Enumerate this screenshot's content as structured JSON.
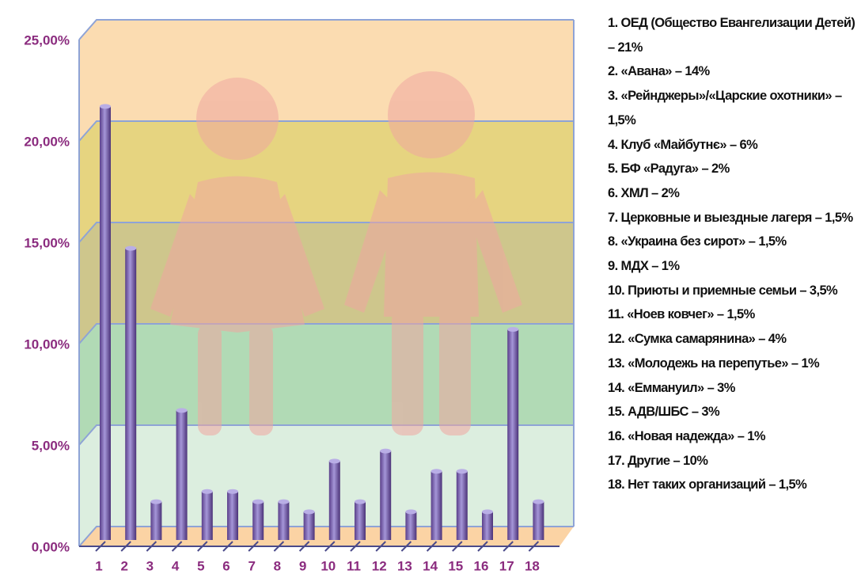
{
  "chart_data": {
    "type": "bar",
    "categories": [
      "1",
      "2",
      "3",
      "4",
      "5",
      "6",
      "7",
      "8",
      "9",
      "10",
      "11",
      "12",
      "13",
      "14",
      "15",
      "16",
      "17",
      "18"
    ],
    "values": [
      21,
      14,
      1.5,
      6,
      2,
      2,
      1.5,
      1.5,
      1,
      3.5,
      1.5,
      4,
      1,
      3,
      3,
      1,
      10,
      1.5
    ],
    "color": "#7b5fa8",
    "ylim": [
      0,
      25
    ],
    "yticks": [
      {
        "value": 0,
        "label": "0,00%"
      },
      {
        "value": 5,
        "label": "5,00%"
      },
      {
        "value": 10,
        "label": "10,00%"
      },
      {
        "value": 15,
        "label": "15,00%"
      },
      {
        "value": 20,
        "label": "20,00%"
      },
      {
        "value": 25,
        "label": "25,00%"
      }
    ],
    "grid": true,
    "band_colors": [
      "#d8ecdc",
      "#a9d6ad",
      "#c9c07f",
      "#e3cf72",
      "#fbd8a9"
    ],
    "legend_items": [
      "1. ОЕД (Общество Евангелизации Детей) – 21%",
      "2. «Авана» – 14%",
      "3. «Рейнджеры»/«Царские охотники» – 1,5%",
      "4. Клуб «Майбутнє» – 6%",
      "5. БФ «Радуга» – 2%",
      "6. ХМЛ – 2%",
      "7. Церковные и выездные лагеря – 1,5%",
      "8. «Украина без сирот» – 1,5%",
      "9. МДХ – 1%",
      "10. Приюты и приемные семьи – 3,5%",
      "11. «Ноев ковчег» – 1,5%",
      "12. «Сумка самарянина» – 4%",
      "13. «Молодежь на перепутье» – 1%",
      "14. «Еммануил» – 3%",
      "15. АДВ/ШБС – 3%",
      "16. «Новая надежда» – 1%",
      "17. Другие – 10%",
      "18. Нет таких организаций – 1,5%"
    ]
  }
}
